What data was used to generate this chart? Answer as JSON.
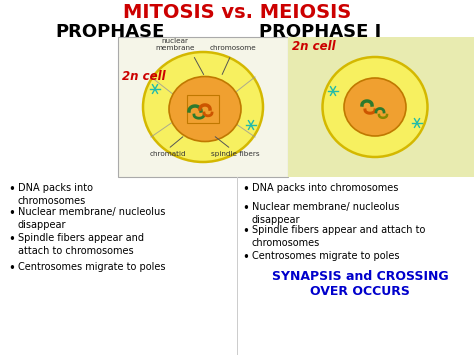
{
  "title": "MITOSIS vs. MEIOSIS",
  "title_color": "#cc0000",
  "header_left": "PROPHASE",
  "header_right": "PROPHASE I",
  "header_color": "#000000",
  "label_2n_left": "2n cell",
  "label_2n_right": "2n cell",
  "label_2n_color": "#cc0000",
  "bg_color": "#ffffff",
  "panel_bg_left": "#f5f5e8",
  "panel_bg_right": "#e8ebb0",
  "bullet_left": [
    "DNA packs into\nchromosomes",
    "Nuclear membrane/ nucleolus\ndisappear",
    "Spindle fibers appear and\nattach to chromosomes",
    "Centrosomes migrate to poles"
  ],
  "bullet_right": [
    "DNA packs into chromosomes",
    "Nuclear membrane/ nucleolus\ndisappear",
    "Spindle fibers appear and attach to\nchromosomes",
    "Centrosomes migrate to poles"
  ],
  "synapsis_text1": "SYNAPSIS and CROSSING",
  "synapsis_text2": "OVER OCCURS",
  "synapsis_color": "#0000cc",
  "bullet_fontsize": 7.0,
  "header_fontsize": 13,
  "title_fontsize": 14
}
